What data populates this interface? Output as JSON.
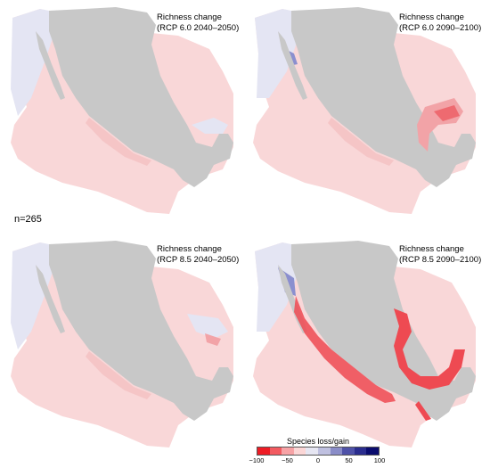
{
  "n_label": "n=265",
  "panels": [
    {
      "title_line1": "Richness change",
      "title_line2": "(RCP 6.0 2040–2050)"
    },
    {
      "title_line1": "Richness change",
      "title_line2": "(RCP 6.0 2090–2100)"
    },
    {
      "title_line1": "Richness change",
      "title_line2": "(RCP 8.5 2040–2050)"
    },
    {
      "title_line1": "Richness change",
      "title_line2": "(RCP 8.5 2090–2100)"
    }
  ],
  "legend": {
    "title": "Species loss/gain",
    "ticks": [
      "−100",
      "−50",
      "0",
      "50",
      "100"
    ],
    "colors": [
      "#ee1c25",
      "#f25a60",
      "#f7a3a6",
      "#fbd6d6",
      "#e6e6f2",
      "#bfc0e0",
      "#8a8dc8",
      "#4f52a8",
      "#2a2d8e",
      "#0a0c6e"
    ]
  },
  "colors": {
    "land": "#c8c8c8",
    "ocean_gain": "#e4e5f3",
    "ocean_loss": "#f9d7d8",
    "strong_loss": "#ee4a52",
    "gain": "#8b8fcf"
  }
}
